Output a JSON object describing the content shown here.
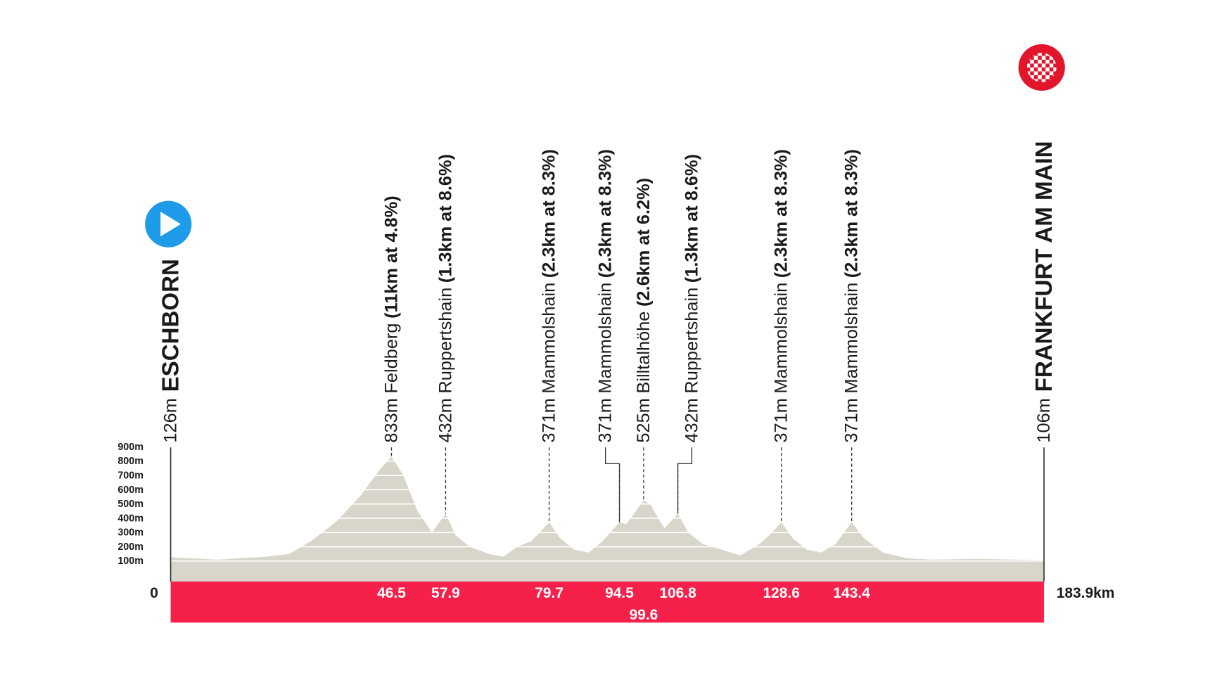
{
  "chart_data": {
    "type": "area",
    "color": "#d8d5cb",
    "band_color": "#f5214b",
    "x": [
      0,
      10,
      20,
      25,
      30,
      35,
      40,
      44,
      46.5,
      49,
      52,
      55,
      57.9,
      60,
      63,
      67,
      70,
      73,
      76,
      79.7,
      82,
      85,
      88,
      91,
      94.5,
      96,
      99.6,
      101,
      103,
      104,
      106.8,
      109,
      112,
      116,
      120,
      124,
      126,
      128.6,
      131,
      134,
      137,
      140,
      143.4,
      146,
      150,
      155,
      160,
      170,
      183.9
    ],
    "values": [
      126,
      110,
      130,
      150,
      250,
      380,
      560,
      740,
      833,
      700,
      450,
      300,
      432,
      280,
      200,
      150,
      130,
      200,
      240,
      371,
      260,
      180,
      160,
      240,
      371,
      360,
      525,
      500,
      380,
      330,
      432,
      300,
      220,
      180,
      140,
      220,
      280,
      371,
      260,
      180,
      160,
      220,
      371,
      260,
      160,
      120,
      110,
      115,
      106
    ],
    "xlim": [
      0,
      183.9
    ],
    "xticks": [
      0,
      {
        "value": 183.9,
        "label": "183.9km"
      }
    ],
    "ylim": [
      0,
      900
    ],
    "yticks": [
      {
        "value": 100,
        "label": "100m"
      },
      {
        "value": 200,
        "label": "200m"
      },
      {
        "value": 300,
        "label": "300m"
      },
      {
        "value": 400,
        "label": "400m"
      },
      {
        "value": 500,
        "label": "500m"
      },
      {
        "value": 600,
        "label": "600m"
      },
      {
        "value": 700,
        "label": "700m"
      },
      {
        "value": 800,
        "label": "800m"
      },
      {
        "value": 900,
        "label": "900m"
      }
    ],
    "grid": true,
    "start": {
      "elevation": "126m",
      "name": "ESCHBORN"
    },
    "finish": {
      "elevation": "106m",
      "name": "FRANKFURT AM MAIN"
    },
    "climbs": [
      {
        "km": 46.5,
        "elevation": "833m",
        "name": "Feldberg",
        "detail": "(11km at 4.8%)"
      },
      {
        "km": 57.9,
        "elevation": "432m",
        "name": "Ruppertshain",
        "detail": "(1.3km at 8.6%)"
      },
      {
        "km": 79.7,
        "elevation": "371m",
        "name": "Mammolshain",
        "detail": "(2.3km at 8.3%)"
      },
      {
        "km": 94.5,
        "elevation": "371m",
        "name": "Mammolshain",
        "detail": "(2.3km at 8.3%)"
      },
      {
        "km": 99.6,
        "elevation": "525m",
        "name": "Billtalhöhe",
        "detail": "(2.6km at 6.2%)"
      },
      {
        "km": 106.8,
        "elevation": "432m",
        "name": "Ruppertshain",
        "detail": "(1.3km at 8.6%)"
      },
      {
        "km": 128.6,
        "elevation": "371m",
        "name": "Mammolshain",
        "detail": "(2.3km at 8.3%)"
      },
      {
        "km": 143.4,
        "elevation": "371m",
        "name": "Mammolshain",
        "detail": "(2.3km at 8.3%)"
      }
    ]
  }
}
